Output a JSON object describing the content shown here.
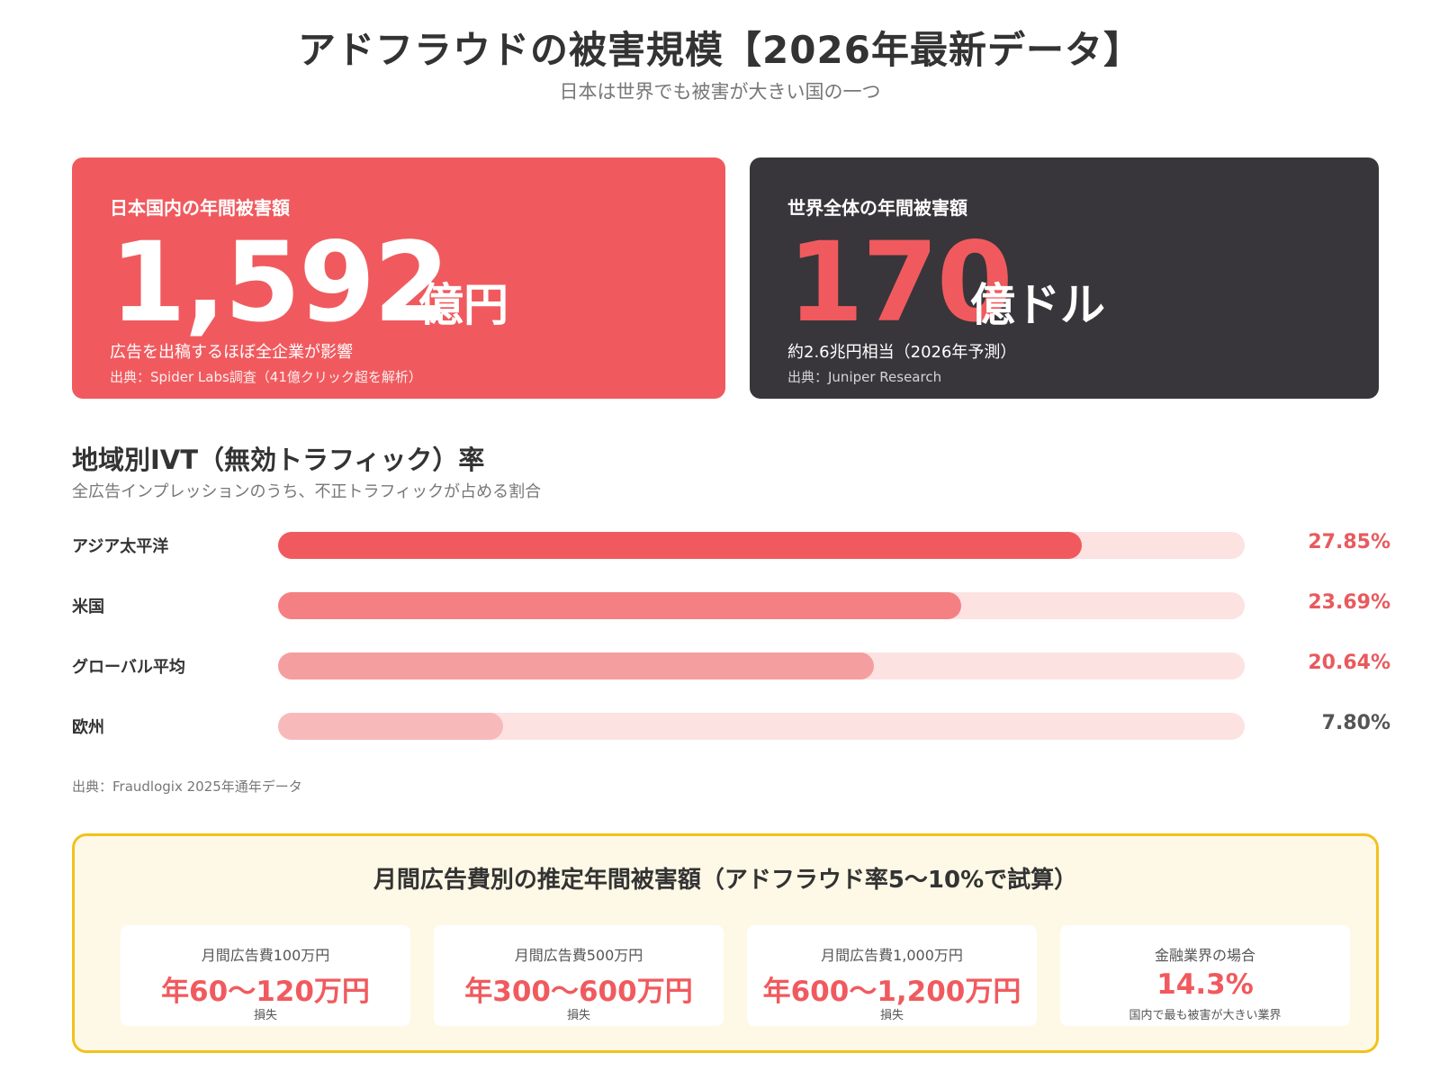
{
  "header": {
    "title": "アドフラウドの被害規模【2026年最新データ】",
    "subtitle": "日本は世界でも被害が大きい国の一つ"
  },
  "cards": {
    "japan": {
      "label": "日本国内の年間被害額",
      "value": "1,592",
      "unit": "億円",
      "description": "広告を出稿するほぼ全企業が影響",
      "source": "出典：Spider Labs調査（41億クリック超を解析）",
      "bg_color": "#f05a5e"
    },
    "world": {
      "label": "世界全体の年間被害額",
      "value": "170",
      "unit": "億ドル",
      "description": "約2.6兆円相当（2026年予測）",
      "source": "出典：Juniper Research",
      "bg_color": "#38363a",
      "value_color": "#f05a5e"
    }
  },
  "ivt_section": {
    "title": "地域別IVT（無効トラフィック）率",
    "subtitle": "全広告インプレッションのうち、不正トラフィックが占める割合",
    "source": "出典：Fraudlogix 2025年通年データ"
  },
  "chart_data": {
    "type": "bar",
    "orientation": "horizontal",
    "categories": [
      "アジア太平洋",
      "米国",
      "グローバル平均",
      "欧州"
    ],
    "values": [
      27.85,
      23.69,
      20.64,
      7.8
    ],
    "value_labels": [
      "27.85%",
      "23.69%",
      "20.64%",
      "7.80%"
    ],
    "xlim": [
      0,
      33.5
    ],
    "bar_colors": [
      "#f05a5e",
      "#f48084",
      "#f59ea0",
      "#f8b9ba"
    ],
    "track_color": "#fde2e2",
    "value_colors": [
      "#e85a5e",
      "#e85a5e",
      "#e85a5e",
      "#555555"
    ]
  },
  "estimate": {
    "title": "月間広告費別の推定年間被害額（アドフラウド率5〜10%で試算）",
    "items": [
      {
        "label": "月間広告費100万円",
        "value": "年60〜120万円",
        "note": "損失"
      },
      {
        "label": "月間広告費500万円",
        "value": "年300〜600万円",
        "note": "損失"
      },
      {
        "label": "月間広告費1,000万円",
        "value": "年600〜1,200万円",
        "note": "損失"
      },
      {
        "label": "金融業界の場合",
        "value": "14.3%",
        "note": "国内で最も被害が大きい業界"
      }
    ],
    "accent_color": "#f05a5e",
    "border_color": "#f2c21b"
  }
}
